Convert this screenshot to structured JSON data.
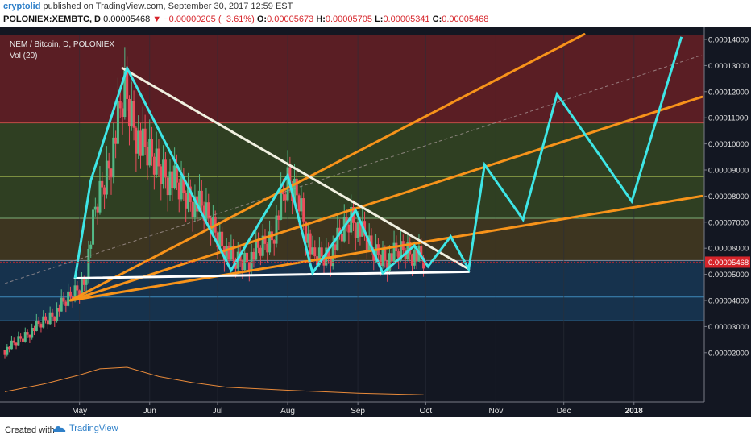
{
  "header": {
    "author": "cryptolid",
    "published_text": " published on TradingView.com, September 30, 2017 12:59 EST",
    "symbol": "POLONIEX:XEMBTC, D",
    "last": "0.00005468",
    "change": "−0.00000205 (−3.61%)",
    "open_label": "O:",
    "open": "0.00005673",
    "high_label": "H:",
    "high": "0.00005705",
    "low_label": "L:",
    "low": "0.00005341",
    "close_label": "C:",
    "close": "0.00005468"
  },
  "chart_title": "NEM / Bitcoin, D, POLONIEX",
  "volume_label": "Vol (20)",
  "footer": {
    "created_with": "Created with",
    "brand": "TradingView"
  },
  "colors": {
    "background": "#131722",
    "zone_top": "#5a1e24",
    "zone_mid": "#2f3f22",
    "zone_low": "#3d3520",
    "zone_bottom": "#16324d",
    "candle_up": "#53b987",
    "candle_down": "#eb4d5c",
    "projection": "#3ee6e6",
    "trendline": "#f7931a",
    "wedge_top": "#f0f0e0",
    "support": "#ffffff",
    "price_tag": "#d6242a"
  },
  "chart_data": {
    "type": "line",
    "title": "NEM / Bitcoin, D, POLONIEX",
    "x_tick_labels": [
      "May",
      "Jun",
      "Jul",
      "Aug",
      "Sep",
      "Oct",
      "Nov",
      "Dec",
      "2018"
    ],
    "y_tick_labels": [
      "0.00014000",
      "0.00013000",
      "0.00012000",
      "0.00011000",
      "0.00010000",
      "0.00009000",
      "0.00008000",
      "0.00007000",
      "0.00006000",
      "0.00005000",
      "0.00004000",
      "0.00003000",
      "0.00002000"
    ],
    "ylim": [
      1.8e-05,
      0.000142
    ],
    "last_price_label": "0.00005468",
    "last_price": 5.468e-05,
    "horizontal_levels": [
      0.000108,
      8.75e-05,
      7.15e-05,
      5.53e-05,
      4.13e-05,
      3.22e-05
    ],
    "series": [
      {
        "role": "price-projection",
        "points": [
          [
            "2017-04-29",
            4.85e-05
          ],
          [
            "2017-05-06",
            8.6e-05
          ],
          [
            "2017-05-22",
            0.000129
          ],
          [
            "2017-07-07",
            5.15e-05
          ],
          [
            "2017-08-01",
            8.8e-05
          ],
          [
            "2017-08-12",
            5.05e-05
          ],
          [
            "2017-08-31",
            7.45e-05
          ],
          [
            "2017-09-12",
            5.05e-05
          ],
          [
            "2017-09-26",
            6.1e-05
          ],
          [
            "2017-10-02",
            5.3e-05
          ],
          [
            "2017-10-12",
            6.45e-05
          ],
          [
            "2017-10-20",
            5.2e-05
          ],
          [
            "2017-10-27",
            9.2e-05
          ],
          [
            "2017-11-13",
            7.1e-05
          ],
          [
            "2017-11-28",
            0.000119
          ],
          [
            "2017-12-31",
            7.8e-05
          ],
          [
            "2018-01-22",
            0.000141
          ]
        ]
      },
      {
        "role": "falling-trendline",
        "points": [
          [
            "2017-05-20",
            0.000129
          ],
          [
            "2017-10-20",
            5.2e-05
          ]
        ]
      },
      {
        "role": "support-line",
        "points": [
          [
            "2017-04-29",
            4.85e-05
          ],
          [
            "2017-10-20",
            5.1e-05
          ]
        ]
      },
      {
        "role": "rising-trendlines",
        "lines": [
          [
            [
              "2017-04-27",
              4e-05
            ],
            [
              "2017-12-10",
              0.000142
            ]
          ],
          [
            [
              "2017-04-27",
              4e-05
            ],
            [
              "2018-01-31",
              0.000118
            ]
          ],
          [
            [
              "2017-04-27",
              4e-05
            ],
            [
              "2018-01-31",
              8e-05
            ]
          ]
        ]
      },
      {
        "role": "dashed-channel",
        "points": [
          [
            "2017-03-29",
            4.65e-05
          ],
          [
            "2018-01-31",
            0.000134
          ]
        ]
      },
      {
        "role": "candles",
        "segments": [
          [
            "2017-03-29",
            2.1e-05
          ],
          [
            "2017-04-20",
            3.5e-05
          ],
          [
            "2017-05-03",
            4.7e-05
          ],
          [
            "2017-05-08",
            7.5e-05
          ],
          [
            "2017-05-15",
            9.5e-05
          ],
          [
            "2017-05-21",
            0.00012
          ],
          [
            "2017-05-28",
            9.8e-05
          ],
          [
            "2017-06-05",
            9.2e-05
          ],
          [
            "2017-06-14",
            8.3e-05
          ],
          [
            "2017-06-25",
            7.4e-05
          ],
          [
            "2017-07-08",
            5.5e-05
          ],
          [
            "2017-07-15",
            5.6e-05
          ],
          [
            "2017-07-25",
            6.4e-05
          ],
          [
            "2017-08-01",
            8.5e-05
          ],
          [
            "2017-08-06",
            8e-05
          ],
          [
            "2017-08-12",
            5.6e-05
          ],
          [
            "2017-08-20",
            5.8e-05
          ],
          [
            "2017-08-29",
            7.2e-05
          ],
          [
            "2017-09-07",
            5.9e-05
          ],
          [
            "2017-09-14",
            5.6e-05
          ],
          [
            "2017-09-22",
            6e-05
          ],
          [
            "2017-09-30",
            5.47e-05
          ]
        ]
      }
    ],
    "volume": {
      "label": "Vol (20)",
      "points": [
        [
          "2017-03-29",
          0.2
        ],
        [
          "2017-04-15",
          0.45
        ],
        [
          "2017-05-01",
          0.75
        ],
        [
          "2017-05-10",
          0.95
        ],
        [
          "2017-05-22",
          1.0
        ],
        [
          "2017-06-05",
          0.7
        ],
        [
          "2017-06-20",
          0.5
        ],
        [
          "2017-07-05",
          0.35
        ],
        [
          "2017-08-01",
          0.25
        ],
        [
          "2017-09-01",
          0.15
        ],
        [
          "2017-09-30",
          0.1
        ]
      ]
    }
  }
}
